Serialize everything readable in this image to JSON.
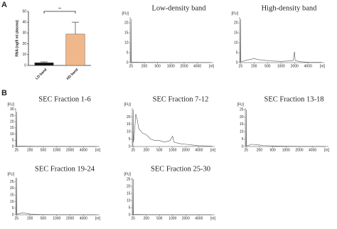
{
  "chart_data": [
    {
      "type": "bar",
      "panel": "A",
      "ylabel": "RNA (ng/8 ml plasma)",
      "categories": [
        "LD band",
        "HD band"
      ],
      "values": [
        2.5,
        29
      ],
      "errors": [
        0.8,
        11
      ],
      "colors": [
        "#111111",
        "#f0b88a"
      ],
      "ylim": [
        0,
        50
      ],
      "yticks": [
        0,
        10,
        20,
        30,
        40,
        50
      ],
      "annotation": "**"
    },
    {
      "type": "line",
      "title": "Low-density band",
      "ylabel": "[FU]",
      "xlabel": "[nt]",
      "xlim": [
        15,
        6000
      ],
      "xticks": [
        25,
        200,
        500,
        1000,
        2000,
        4000
      ],
      "ylim": [
        0,
        23
      ],
      "yticks": [
        0,
        5,
        10,
        15,
        20
      ],
      "x": [
        15,
        22,
        25,
        28,
        35,
        60,
        100,
        200,
        300,
        500,
        1000,
        2000,
        4000,
        6000
      ],
      "series": [
        {
          "color": "#555555",
          "values": [
            0,
            0,
            22,
            0.6,
            0.3,
            0.2,
            0.2,
            0.1,
            0.1,
            0.1,
            0.05,
            0.05,
            0.05,
            0.05
          ]
        }
      ]
    },
    {
      "type": "line",
      "title": "High-density band",
      "ylabel": "[FU]",
      "xlabel": "[nt]",
      "xlim": [
        15,
        6000
      ],
      "xticks": [
        25,
        200,
        500,
        1000,
        2000,
        4000
      ],
      "ylim": [
        0,
        23
      ],
      "yticks": [
        0,
        5,
        10,
        15,
        20
      ],
      "x": [
        15,
        22,
        25,
        28,
        40,
        100,
        200,
        300,
        400,
        500,
        700,
        1000,
        1500,
        1900,
        2000,
        2100,
        3000,
        4000,
        6000
      ],
      "series": [
        {
          "color": "#555555",
          "values": [
            0,
            0,
            22,
            0.5,
            0.5,
            1.2,
            2.0,
            1.5,
            1.2,
            1.0,
            0.8,
            0.6,
            0.8,
            1.0,
            5.5,
            1.0,
            0.4,
            0.2,
            0.1
          ]
        }
      ]
    },
    {
      "type": "line",
      "panel": "B",
      "title": "SEC Fraction 1-6",
      "ylabel": "[FU]",
      "xlabel": "[nt]",
      "xlim": [
        15,
        6000
      ],
      "xticks": [
        25,
        200,
        500,
        1000,
        2000,
        4000
      ],
      "ylim": [
        0,
        31
      ],
      "yticks": [
        0,
        5,
        10,
        15,
        20,
        25,
        30
      ],
      "x": [
        15,
        22,
        25,
        28,
        40,
        100,
        200,
        500,
        1000,
        2000,
        4000,
        6000
      ],
      "series": [
        {
          "color": "#555555",
          "values": [
            0,
            0,
            28,
            0.5,
            0.3,
            0.3,
            0.2,
            0.1,
            0.1,
            0.1,
            0.05,
            0.05
          ]
        }
      ]
    },
    {
      "type": "line",
      "title": "SEC Fraction 7-12",
      "ylabel": "[FU]",
      "xlabel": "[nt]",
      "xlim": [
        15,
        6000
      ],
      "xticks": [
        25,
        200,
        500,
        1000,
        2000,
        4000
      ],
      "ylim": [
        0,
        26
      ],
      "yticks": [
        0,
        5,
        10,
        15,
        20
      ],
      "x": [
        15,
        22,
        25,
        28,
        40,
        60,
        80,
        100,
        150,
        200,
        300,
        400,
        500,
        700,
        900,
        1000,
        1100,
        1500,
        2000,
        3000,
        4000,
        6000
      ],
      "series": [
        {
          "color": "#555555",
          "values": [
            0,
            0,
            25,
            3,
            8,
            22,
            18,
            12,
            9,
            8,
            5,
            4,
            4,
            3,
            4,
            7,
            3,
            2,
            1.5,
            1,
            0.5,
            0.3
          ]
        }
      ]
    },
    {
      "type": "line",
      "title": "SEC Fraction 13-18",
      "ylabel": "[FU]",
      "xlabel": "[nt]",
      "xlim": [
        15,
        6000
      ],
      "xticks": [
        25,
        200,
        500,
        1000,
        2000,
        4000
      ],
      "ylim": [
        0,
        26
      ],
      "yticks": [
        0,
        5,
        10,
        15,
        20,
        25
      ],
      "x": [
        15,
        22,
        25,
        28,
        40,
        100,
        200,
        300,
        500,
        1000,
        2000,
        4000,
        6000
      ],
      "series": [
        {
          "color": "#555555",
          "values": [
            0,
            0,
            25,
            0.6,
            0.5,
            1.5,
            1.0,
            0.6,
            0.4,
            0.2,
            0.1,
            0.1,
            0.05
          ]
        }
      ]
    },
    {
      "type": "line",
      "title": "SEC Fraction 19-24",
      "ylabel": "[FU]",
      "xlabel": "[nt]",
      "xlim": [
        15,
        6000
      ],
      "xticks": [
        25,
        200,
        500,
        1000,
        2000,
        4000
      ],
      "ylim": [
        0,
        28
      ],
      "yticks": [
        0,
        5,
        10,
        15,
        20,
        25
      ],
      "x": [
        15,
        22,
        25,
        28,
        40,
        100,
        200,
        500,
        1000,
        2000,
        4000,
        6000
      ],
      "series": [
        {
          "color": "#555555",
          "values": [
            0,
            0,
            28,
            0.5,
            0.5,
            1.5,
            0.5,
            0.2,
            0.1,
            0.1,
            0.05,
            0.05
          ]
        }
      ]
    },
    {
      "type": "line",
      "title": "SEC Fraction 25-30",
      "ylabel": "[FU]",
      "xlabel": "[nt]",
      "xlim": [
        15,
        6000
      ],
      "xticks": [
        25,
        200,
        500,
        1000,
        2000,
        4000
      ],
      "ylim": [
        0,
        26
      ],
      "yticks": [
        0,
        5,
        10,
        15,
        20,
        25
      ],
      "x": [
        15,
        22,
        25,
        28,
        40,
        100,
        200,
        500,
        1000,
        2000,
        4000,
        6000
      ],
      "series": [
        {
          "color": "#555555",
          "values": [
            0,
            0,
            25,
            0.3,
            0.2,
            0.2,
            0.1,
            0.1,
            0.05,
            0.05,
            0.05,
            0.05
          ]
        }
      ]
    }
  ]
}
